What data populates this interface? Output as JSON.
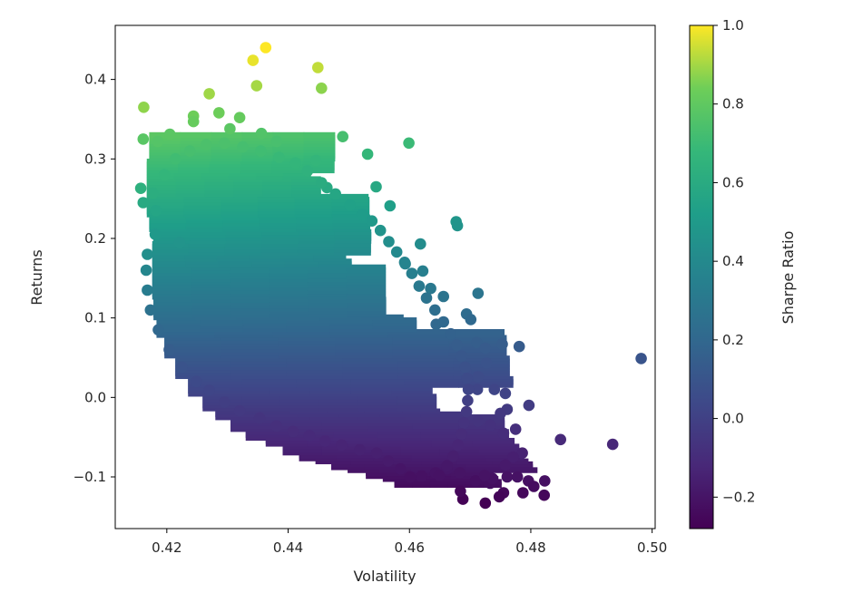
{
  "chart_data": {
    "type": "scatter",
    "title": "",
    "xlabel": "Volatility",
    "ylabel": "Returns",
    "xlim": [
      0.4115,
      0.5005
    ],
    "ylim": [
      -0.165,
      0.468
    ],
    "x_ticks": [
      0.42,
      0.44,
      0.46,
      0.48,
      0.5
    ],
    "x_tick_labels": [
      "0.42",
      "0.44",
      "0.46",
      "0.48",
      "0.50"
    ],
    "y_ticks": [
      -0.1,
      0.0,
      0.1,
      0.2,
      0.3,
      0.4
    ],
    "y_tick_labels": [
      "−0.1",
      "0.0",
      "0.1",
      "0.2",
      "0.3",
      "0.4"
    ],
    "grid": false,
    "colormap": "viridis",
    "colorbar": {
      "label": "Sharpe Ratio",
      "range": [
        -0.28,
        1.0
      ],
      "ticks": [
        -0.2,
        0.0,
        0.2,
        0.4,
        0.6,
        0.8,
        1.0
      ],
      "tick_labels": [
        "−0.2",
        "0.0",
        "0.2",
        "0.4",
        "0.6",
        "0.8",
        "1.0"
      ]
    },
    "color_encoding": "Sharpe Ratio = Returns / Volatility",
    "series": [
      {
        "points": [
          [
            0.4363,
            0.44
          ],
          [
            0.4342,
            0.424
          ],
          [
            0.4348,
            0.392
          ],
          [
            0.4449,
            0.415
          ],
          [
            0.4455,
            0.389
          ],
          [
            0.4162,
            0.365
          ],
          [
            0.427,
            0.382
          ],
          [
            0.4244,
            0.354
          ],
          [
            0.4244,
            0.347
          ],
          [
            0.4286,
            0.358
          ],
          [
            0.4161,
            0.325
          ],
          [
            0.4185,
            0.322
          ],
          [
            0.4205,
            0.331
          ],
          [
            0.432,
            0.352
          ],
          [
            0.4304,
            0.338
          ],
          [
            0.4356,
            0.332
          ],
          [
            0.4381,
            0.322
          ],
          [
            0.449,
            0.328
          ],
          [
            0.4599,
            0.32
          ],
          [
            0.4446,
            0.298
          ],
          [
            0.4531,
            0.306
          ],
          [
            0.4157,
            0.263
          ],
          [
            0.4161,
            0.245
          ],
          [
            0.4177,
            0.257
          ],
          [
            0.4464,
            0.264
          ],
          [
            0.4545,
            0.265
          ],
          [
            0.4568,
            0.241
          ],
          [
            0.4677,
            0.221
          ],
          [
            0.4679,
            0.216
          ],
          [
            0.4181,
            0.205
          ],
          [
            0.4221,
            0.195
          ],
          [
            0.4618,
            0.193
          ],
          [
            0.4593,
            0.168
          ],
          [
            0.4622,
            0.159
          ],
          [
            0.4635,
            0.137
          ],
          [
            0.4656,
            0.127
          ],
          [
            0.4713,
            0.131
          ],
          [
            0.4694,
            0.105
          ],
          [
            0.4701,
            0.098
          ],
          [
            0.4644,
            0.092
          ],
          [
            0.4711,
            0.069
          ],
          [
            0.4725,
            0.062
          ],
          [
            0.4753,
            0.067
          ],
          [
            0.4781,
            0.064
          ],
          [
            0.4982,
            0.049
          ],
          [
            0.4727,
            0.043
          ],
          [
            0.4693,
            0.033
          ],
          [
            0.4713,
            0.026
          ],
          [
            0.4712,
            0.01
          ],
          [
            0.474,
            0.01
          ],
          [
            0.4758,
            0.005
          ],
          [
            0.4797,
            -0.01
          ],
          [
            0.4761,
            -0.015
          ],
          [
            0.475,
            -0.02
          ],
          [
            0.4733,
            -0.035
          ],
          [
            0.4713,
            -0.03
          ],
          [
            0.4755,
            -0.045
          ],
          [
            0.4775,
            -0.04
          ],
          [
            0.4849,
            -0.053
          ],
          [
            0.4935,
            -0.059
          ],
          [
            0.4786,
            -0.07
          ],
          [
            0.4771,
            -0.075
          ],
          [
            0.4758,
            -0.085
          ],
          [
            0.4761,
            -0.1
          ],
          [
            0.4778,
            -0.1
          ],
          [
            0.4796,
            -0.105
          ],
          [
            0.4823,
            -0.105
          ],
          [
            0.4822,
            -0.123
          ],
          [
            0.4805,
            -0.112
          ],
          [
            0.4787,
            -0.12
          ],
          [
            0.4755,
            -0.12
          ],
          [
            0.4748,
            -0.125
          ],
          [
            0.4725,
            -0.133
          ],
          [
            0.4688,
            -0.128
          ],
          [
            0.4684,
            -0.118
          ],
          [
            0.4709,
            -0.105
          ],
          [
            0.4733,
            -0.108
          ],
          [
            0.4737,
            -0.102
          ],
          [
            0.4724,
            -0.098
          ],
          [
            0.4683,
            -0.095
          ],
          [
            0.4662,
            -0.09
          ],
          [
            0.4643,
            -0.095
          ],
          [
            0.462,
            -0.099
          ],
          [
            0.4601,
            -0.1
          ],
          [
            0.4585,
            -0.09
          ],
          [
            0.4565,
            -0.08
          ],
          [
            0.4546,
            -0.07
          ],
          [
            0.4518,
            -0.066
          ],
          [
            0.4488,
            -0.06
          ],
          [
            0.4461,
            -0.055
          ],
          [
            0.4435,
            -0.048
          ],
          [
            0.4408,
            -0.043
          ],
          [
            0.4381,
            -0.036
          ],
          [
            0.4353,
            -0.026
          ],
          [
            0.432,
            -0.017
          ],
          [
            0.4295,
            -0.006
          ],
          [
            0.427,
            0.009
          ],
          [
            0.4249,
            0.02
          ],
          [
            0.4225,
            0.038
          ],
          [
            0.4204,
            0.06
          ],
          [
            0.4186,
            0.085
          ],
          [
            0.4173,
            0.11
          ],
          [
            0.4168,
            0.135
          ],
          [
            0.4166,
            0.16
          ],
          [
            0.4168,
            0.18
          ],
          [
            0.4182,
            0.235
          ],
          [
            0.4196,
            0.28
          ],
          [
            0.4214,
            0.3
          ],
          [
            0.4238,
            0.31
          ],
          [
            0.4265,
            0.318
          ],
          [
            0.4295,
            0.32
          ],
          [
            0.4325,
            0.315
          ],
          [
            0.4355,
            0.31
          ],
          [
            0.4385,
            0.302
          ],
          [
            0.4412,
            0.295
          ],
          [
            0.4432,
            0.285
          ],
          [
            0.4455,
            0.27
          ],
          [
            0.4478,
            0.256
          ],
          [
            0.4502,
            0.242
          ],
          [
            0.4522,
            0.23
          ],
          [
            0.4538,
            0.222
          ],
          [
            0.4552,
            0.21
          ],
          [
            0.4566,
            0.196
          ],
          [
            0.4579,
            0.183
          ],
          [
            0.4592,
            0.17
          ],
          [
            0.4604,
            0.156
          ],
          [
            0.4616,
            0.14
          ],
          [
            0.4628,
            0.125
          ],
          [
            0.4642,
            0.11
          ],
          [
            0.4656,
            0.095
          ],
          [
            0.4668,
            0.08
          ],
          [
            0.4678,
            0.066
          ],
          [
            0.4686,
            0.052
          ],
          [
            0.4692,
            0.038
          ],
          [
            0.4695,
            0.024
          ],
          [
            0.4697,
            0.01
          ],
          [
            0.4696,
            -0.004
          ],
          [
            0.4694,
            -0.018
          ],
          [
            0.469,
            -0.032
          ],
          [
            0.4686,
            -0.046
          ],
          [
            0.468,
            -0.06
          ],
          [
            0.4672,
            -0.074
          ],
          [
            0.4662,
            -0.086
          ],
          [
            0.4649,
            -0.098
          ]
        ]
      }
    ]
  }
}
